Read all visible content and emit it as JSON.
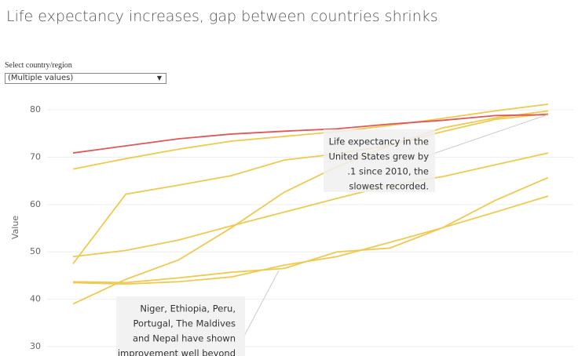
{
  "filter": {
    "label": "Select country/region",
    "value": "(Multiple values)"
  },
  "chart_data": {
    "type": "line",
    "title": "Life expectancy increases, gap between countries shrinks",
    "y_label": "Value",
    "categories": [
      null,
      null,
      null,
      null,
      null,
      null,
      null,
      null,
      null,
      null
    ],
    "ylim": [
      28,
      84
    ],
    "yticks": [
      30,
      40,
      50,
      60,
      70,
      80
    ],
    "grid": true,
    "series": [
      {
        "color": "#f0c94f",
        "values": [
          67.5,
          69.7,
          71.7,
          73.4,
          74.4,
          75.4,
          76.7,
          78.2,
          79.8,
          81.2
        ]
      },
      {
        "color": "#f0c94f",
        "values": [
          47.5,
          62.2,
          64.1,
          66.1,
          69.4,
          70.7,
          72.5,
          75.4,
          78.0,
          79.2
        ]
      },
      {
        "color": "#f0c94f",
        "values": [
          49.0,
          50.3,
          52.5,
          55.5,
          58.4,
          61.3,
          64.1,
          65.9,
          68.4,
          70.9
        ]
      },
      {
        "color": "#f0c94f",
        "values": [
          39.0,
          44.2,
          48.3,
          55.1,
          62.6,
          68.0,
          72.5,
          76.2,
          78.3,
          79.8
        ]
      },
      {
        "color": "#f0c94f",
        "values": [
          43.7,
          43.5,
          44.5,
          45.7,
          46.5,
          50.0,
          50.8,
          55.1,
          60.9,
          65.7
        ]
      },
      {
        "color": "#f0c94f",
        "values": [
          43.5,
          43.2,
          43.7,
          44.7,
          47.2,
          49.0,
          52.0,
          55.1,
          58.4,
          61.8
        ]
      },
      {
        "color": "#e15759",
        "values": [
          70.9,
          72.4,
          73.9,
          74.9,
          75.5,
          76.0,
          77.0,
          77.8,
          78.8,
          79.0
        ]
      }
    ],
    "annotations": [
      {
        "lines": [
          "Life expectancy in the",
          "United States grew by",
          ".1 since 2010, the",
          "slowest recorded."
        ]
      },
      {
        "lines": [
          "Niger, Ethiopia, Peru,",
          "Portugal, The Maldives",
          "and Nepal have shown",
          "improvement well beyond"
        ]
      }
    ]
  }
}
